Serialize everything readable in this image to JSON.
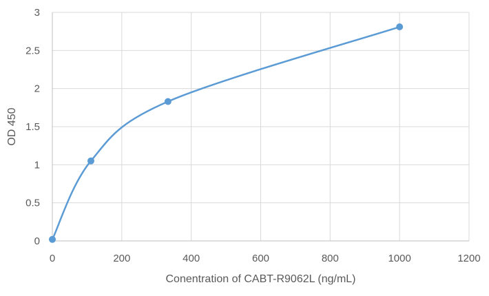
{
  "chart_data": {
    "type": "scatter",
    "title": "",
    "xlabel": "Conentration of CABT-R9062L (ng/mL)",
    "ylabel": "OD 450",
    "xlim": [
      0,
      1200
    ],
    "ylim": [
      0,
      3
    ],
    "x_ticks": [
      "0",
      "200",
      "400",
      "600",
      "800",
      "1000",
      "1200"
    ],
    "y_ticks": [
      "0",
      "0.5",
      "1",
      "1.5",
      "2",
      "2.5",
      "3"
    ],
    "grid": true,
    "legend": "none",
    "smooth_line": true,
    "series": [
      {
        "points": [
          {
            "x": 0,
            "y": 0.02
          },
          {
            "x": 111,
            "y": 1.05
          },
          {
            "x": 333,
            "y": 1.83
          },
          {
            "x": 1000,
            "y": 2.81
          }
        ],
        "color": "#5b9bd5"
      }
    ]
  }
}
